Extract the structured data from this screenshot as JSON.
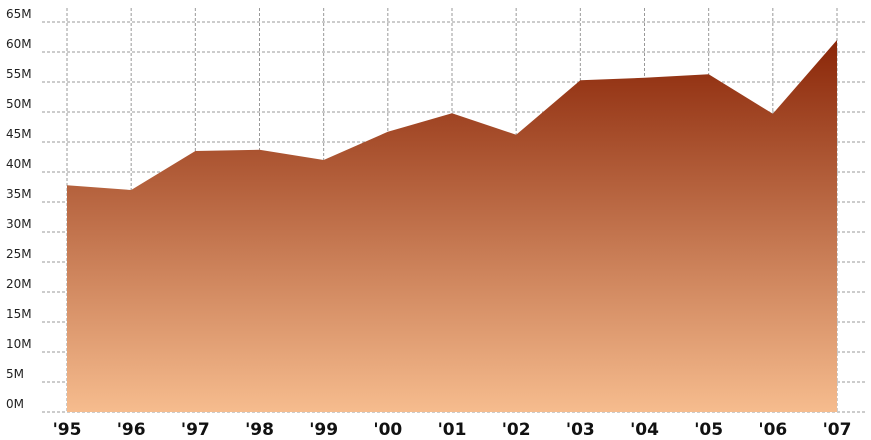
{
  "chart_data": {
    "type": "area",
    "categories": [
      "'95",
      "'96",
      "'97",
      "'98",
      "'99",
      "'00",
      "'01",
      "'02",
      "'03",
      "'04",
      "'05",
      "'06",
      "'07"
    ],
    "values": [
      37.8,
      37,
      43.5,
      43.7,
      42,
      46.7,
      49.8,
      46.2,
      55.3,
      55.7,
      56.3,
      49.7,
      62
    ],
    "ylim": [
      0,
      65
    ],
    "yticks": [
      {
        "value": 0,
        "label": "0M"
      },
      {
        "value": 5,
        "label": "5M"
      },
      {
        "value": 10,
        "label": "10M"
      },
      {
        "value": 15,
        "label": "15M"
      },
      {
        "value": 20,
        "label": "20M"
      },
      {
        "value": 25,
        "label": "25M"
      },
      {
        "value": 30,
        "label": "30M"
      },
      {
        "value": 35,
        "label": "35M"
      },
      {
        "value": 40,
        "label": "40M"
      },
      {
        "value": 45,
        "label": "45M"
      },
      {
        "value": 50,
        "label": "50M"
      },
      {
        "value": 55,
        "label": "55M"
      },
      {
        "value": 60,
        "label": "60M"
      },
      {
        "value": 65,
        "label": "65M"
      }
    ],
    "grid": true,
    "gradient": {
      "top": "#8a2608",
      "bottom": "#f6bc8e"
    }
  }
}
